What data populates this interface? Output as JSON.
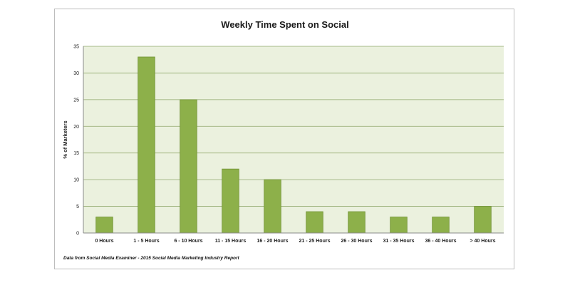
{
  "chart_data": {
    "type": "bar",
    "title": "Weekly Time Spent on Social",
    "xlabel": "",
    "ylabel": "% of Marketers",
    "categories": [
      "0 Hours",
      "1 - 5 Hours",
      "6 - 10 Hours",
      "11 - 15 Hours",
      "16 - 20 Hours",
      "21 - 25 Hours",
      "26 - 30 Hours",
      "31 - 35 Hours",
      "36 - 40 Hours",
      "> 40 Hours"
    ],
    "values": [
      3,
      33,
      25,
      12,
      10,
      4,
      4,
      3,
      3,
      5
    ],
    "ylim": [
      0,
      35
    ],
    "yticks": [
      0,
      5,
      10,
      15,
      20,
      25,
      30,
      35
    ],
    "grid": true,
    "legend": "none",
    "bar_color": "#8db04a",
    "bar_edge_color": "#6f9132",
    "plot_background": "#ebf1de",
    "gridline_color": "#8fa66a",
    "source_note": "Data from Social Media Examiner - 2015 Social Media Marketing Industry Report"
  }
}
